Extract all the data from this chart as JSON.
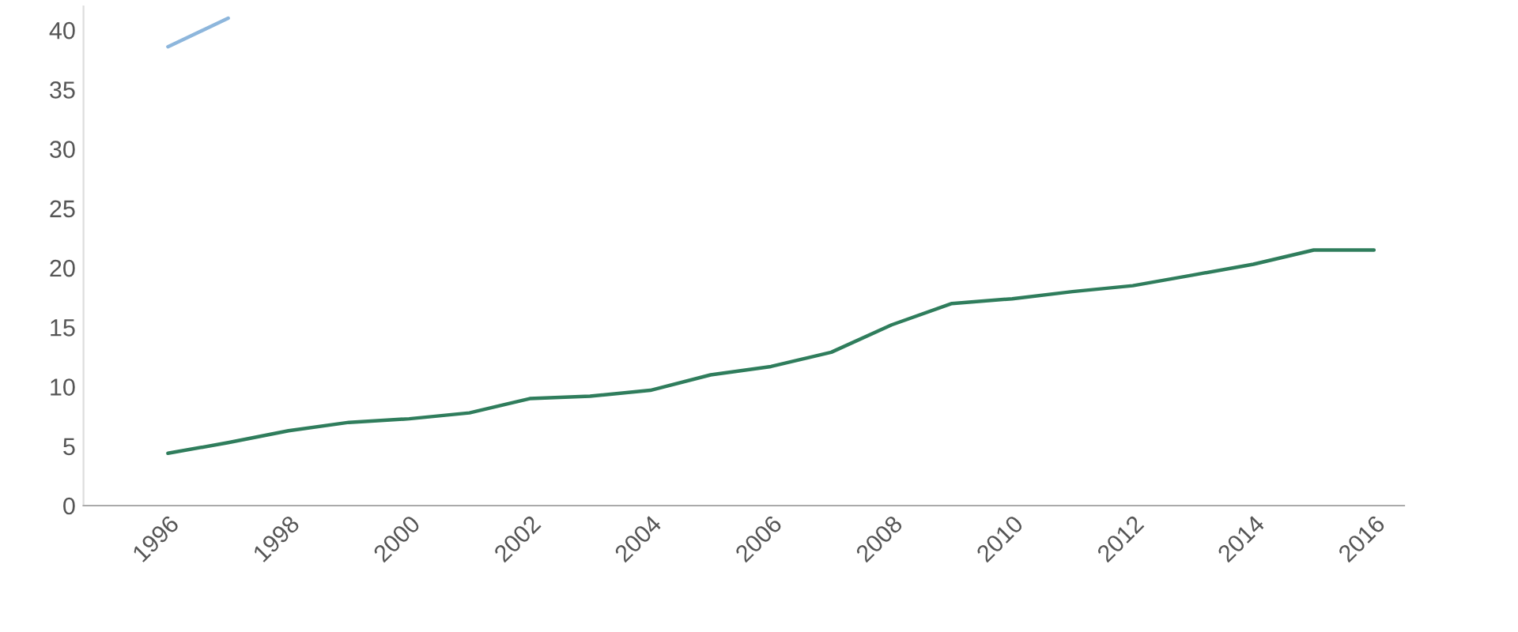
{
  "chart_data": {
    "type": "line",
    "x": [
      1996,
      1997,
      1998,
      1999,
      2000,
      2001,
      2002,
      2003,
      2004,
      2005,
      2006,
      2007,
      2008,
      2009,
      2010,
      2011,
      2012,
      2013,
      2014,
      2015,
      2016
    ],
    "series": [
      {
        "color": "#8db6dc",
        "values": [
          38.6,
          41.0,
          null,
          null,
          null,
          null,
          null,
          null,
          null,
          null,
          null,
          null,
          null,
          null,
          null,
          null,
          null,
          null,
          null,
          null,
          null
        ]
      },
      {
        "color": "#2f7d5c",
        "values": [
          4.4,
          5.3,
          6.3,
          7.0,
          7.3,
          7.8,
          9.0,
          9.2,
          9.7,
          11.0,
          11.7,
          12.9,
          15.2,
          17.0,
          17.4,
          18.0,
          18.5,
          19.4,
          20.3,
          21.5,
          21.5
        ]
      }
    ],
    "xlim": [
      1994.6,
      2016.5
    ],
    "xticks": [
      1996,
      1998,
      2000,
      2002,
      2004,
      2006,
      2008,
      2010,
      2012,
      2014,
      2016
    ],
    "ylim": [
      0,
      42
    ],
    "yticks": [
      0,
      5,
      10,
      15,
      20,
      25,
      30,
      35,
      40
    ],
    "grid": false,
    "legend": false,
    "marker": "none",
    "line_style": "solid"
  }
}
